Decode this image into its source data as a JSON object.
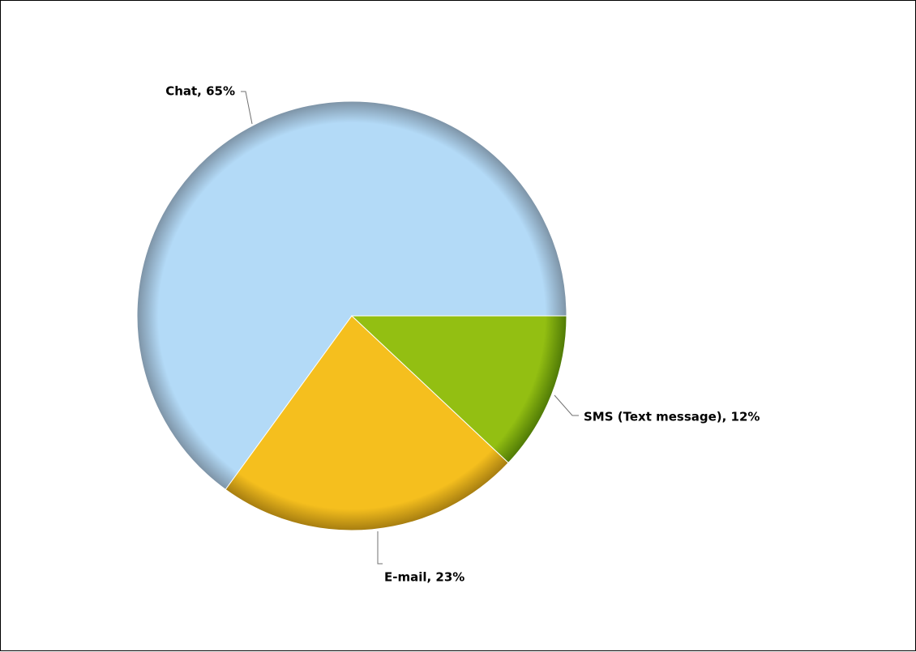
{
  "chart_data": {
    "type": "pie",
    "title": "",
    "slices": [
      {
        "label": "Chat",
        "value": 65,
        "color": "#b3daf7",
        "rim_color": "#7d93a6",
        "data_label": "Chat, 65%"
      },
      {
        "label": "E-mail",
        "value": 23,
        "color": "#f5bf1e",
        "rim_color": "#a67d10",
        "data_label": "E-mail, 23%"
      },
      {
        "label": "SMS (Text message)",
        "value": 12,
        "color": "#93bf12",
        "rim_color": "#4f7a06",
        "data_label": "SMS (Text message), 12%"
      }
    ],
    "start_angle_deg": 0,
    "direction": "counterclockwise-from-3-oclock",
    "legend": "none"
  }
}
